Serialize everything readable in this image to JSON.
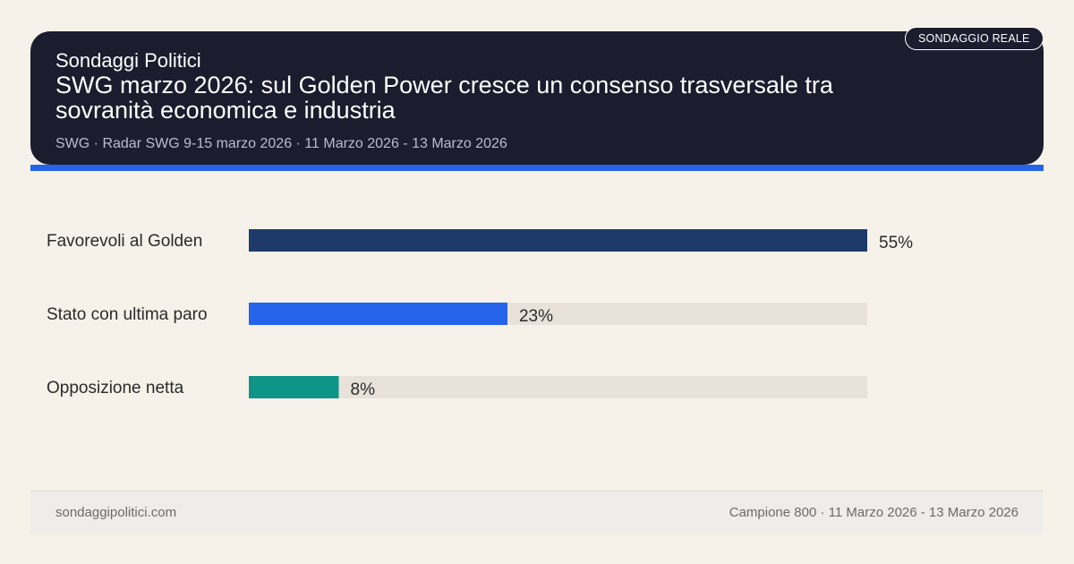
{
  "header": {
    "brand": "Sondaggi Politici",
    "title": "SWG marzo 2026: sul Golden Power cresce un consenso trasversale tra sovranità economica e industria",
    "subtitle": "SWG · Radar SWG 9-15 marzo 2026 · 11 Marzo 2026 - 13 Marzo 2026",
    "badge": "SONDAGGIO REALE"
  },
  "colors": {
    "header_bg": "#1b1c2e",
    "accent": "#2563eb",
    "track": "#e8e2da",
    "page_bg": "#f6f2ea"
  },
  "chart_data": {
    "type": "bar",
    "orientation": "horizontal",
    "categories": [
      "Favorevoli al Golden",
      "Stato con ultima paro",
      "Opposizione netta"
    ],
    "values": [
      55,
      23,
      8
    ],
    "value_labels": [
      "55%",
      "23%",
      "8%"
    ],
    "colors": [
      "#1e3a6b",
      "#2563eb",
      "#0f9488"
    ],
    "xlim": [
      0,
      55
    ],
    "grid": false
  },
  "footer": {
    "site": "sondaggipolitici.com",
    "meta": "Campione 800 · 11 Marzo 2026 - 13 Marzo 2026"
  }
}
